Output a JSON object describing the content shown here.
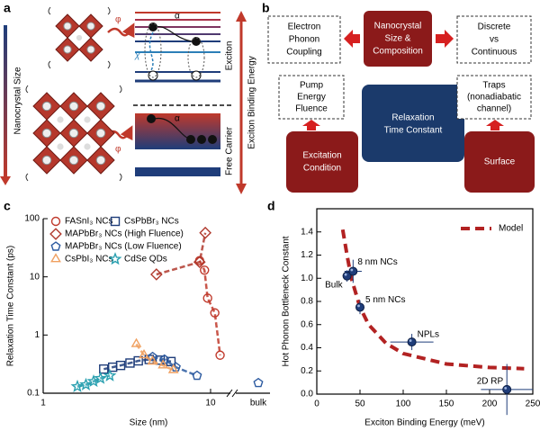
{
  "panel_labels": [
    "a",
    "b",
    "c",
    "d"
  ],
  "diagram_a": {
    "phi_top": "φ",
    "alpha_top": "α",
    "chi": "χ",
    "size_axis": "Nanocrystal Size",
    "exciton": "Exciton",
    "free_carrier": "Free Carrier",
    "binding_axis": "Exciton Binding Energy",
    "alpha_bottom": "α",
    "phi_bottom": "φ"
  },
  "diagram_b": {
    "nodes": [
      {
        "label": [
          "Electron",
          "Phonon",
          "Coupling"
        ]
      },
      {
        "label": [
          "Nanocrystal",
          "Size &",
          "Composition"
        ]
      },
      {
        "label": [
          "Discrete",
          "vs",
          "Continuous"
        ]
      },
      {
        "label": [
          "Pump",
          "Energy",
          "Fluence"
        ]
      },
      {
        "label": [
          "Relaxation",
          "Time Constant"
        ]
      },
      {
        "label": [
          "Traps",
          "(nonadiabatic",
          "channel)"
        ]
      },
      {
        "label": [
          "Excitation",
          "Condition"
        ]
      },
      {
        "label": [
          "Surface"
        ]
      }
    ]
  },
  "chart_data": [
    {
      "type": "scatter",
      "xlabel": "Size (nm)",
      "ylabel": "Relaxation Time Constant (ps)",
      "log_x": true,
      "log_y": true,
      "xlim": [
        1,
        12.5
      ],
      "ylim": [
        0.1,
        100
      ],
      "xticks": [
        1,
        10
      ],
      "yticks": [
        0.1,
        1,
        10,
        100
      ],
      "x_break": {
        "label": "bulk"
      },
      "series": [
        {
          "name": "FASnI₃ NCs",
          "color": "#c0392b",
          "marker": "circle",
          "x": [
            8.6,
            9.2,
            9.6,
            10.6,
            11.4
          ],
          "values": [
            19,
            13,
            4.3,
            2.4,
            0.45
          ]
        },
        {
          "name": "CsPbBr₃ NCs",
          "color": "#1f3d7a",
          "marker": "square",
          "x": [
            2.3,
            2.6,
            2.9,
            3.3,
            3.7,
            4.3,
            5.0,
            5.8
          ],
          "values": [
            0.26,
            0.28,
            0.3,
            0.33,
            0.36,
            0.38,
            0.37,
            0.35
          ]
        },
        {
          "name": "MAPbBr₃ NCs (High Fluence)",
          "color": "#b03a2e",
          "marker": "diamond",
          "x": [
            4.75,
            8.6,
            9.3
          ],
          "values": [
            11,
            18,
            57
          ]
        },
        {
          "name": "MAPbBr₃ NCs (Low Fluence)",
          "color": "#2c5aa0",
          "marker": "pentagon",
          "x": [
            4.5,
            5.3,
            6.2,
            8.3
          ],
          "values": [
            0.42,
            0.38,
            0.28,
            0.2
          ],
          "bulk_value": 0.15
        },
        {
          "name": "CsPbI₃ NCs",
          "color": "#f0a060",
          "marker": "triangle",
          "x": [
            3.6,
            4.0,
            4.5,
            5.2,
            6.0
          ],
          "values": [
            0.7,
            0.45,
            0.35,
            0.3,
            0.25
          ]
        },
        {
          "name": "CdSe QDs",
          "color": "#2aa0b0",
          "marker": "star",
          "x": [
            1.6,
            1.8,
            2.0,
            2.2,
            2.5
          ],
          "values": [
            0.13,
            0.14,
            0.16,
            0.18,
            0.2
          ]
        }
      ]
    },
    {
      "type": "scatter",
      "xlabel": "Exciton Binding Energy (meV)",
      "ylabel": "Hot Phonon Bottleneck Constant",
      "xlim": [
        0,
        250
      ],
      "ylim": [
        0,
        1.6
      ],
      "xticks": [
        0,
        50,
        100,
        150,
        200,
        250
      ],
      "yticks": [
        {
          "value": 0,
          "label": "0.0"
        },
        0.2,
        0.4,
        0.6,
        0.8,
        {
          "value": 1,
          "label": "1.0"
        },
        1.2,
        1.4
      ],
      "legend": "upper right",
      "series": [
        {
          "name": "Model",
          "color": "#b22222",
          "style": "dashed",
          "x": [
            30,
            35,
            40,
            50,
            60,
            80,
            100,
            150,
            200,
            240
          ],
          "values": [
            1.42,
            1.2,
            1.0,
            0.75,
            0.6,
            0.44,
            0.35,
            0.26,
            0.23,
            0.22
          ]
        },
        {
          "color": "#1f3d7a",
          "x": [
            35,
            42,
            50,
            110,
            220
          ],
          "values": [
            1.02,
            1.06,
            0.75,
            0.45,
            0.04
          ],
          "xerr": [
            5,
            10,
            5,
            25,
            30
          ],
          "yerr": [
            0.05,
            0.1,
            0.06,
            0.07,
            0.22
          ],
          "labels": [
            "Bulk",
            "8 nm NCs",
            "5 nm NCs",
            "NPLs",
            "2D RP"
          ]
        }
      ]
    }
  ]
}
